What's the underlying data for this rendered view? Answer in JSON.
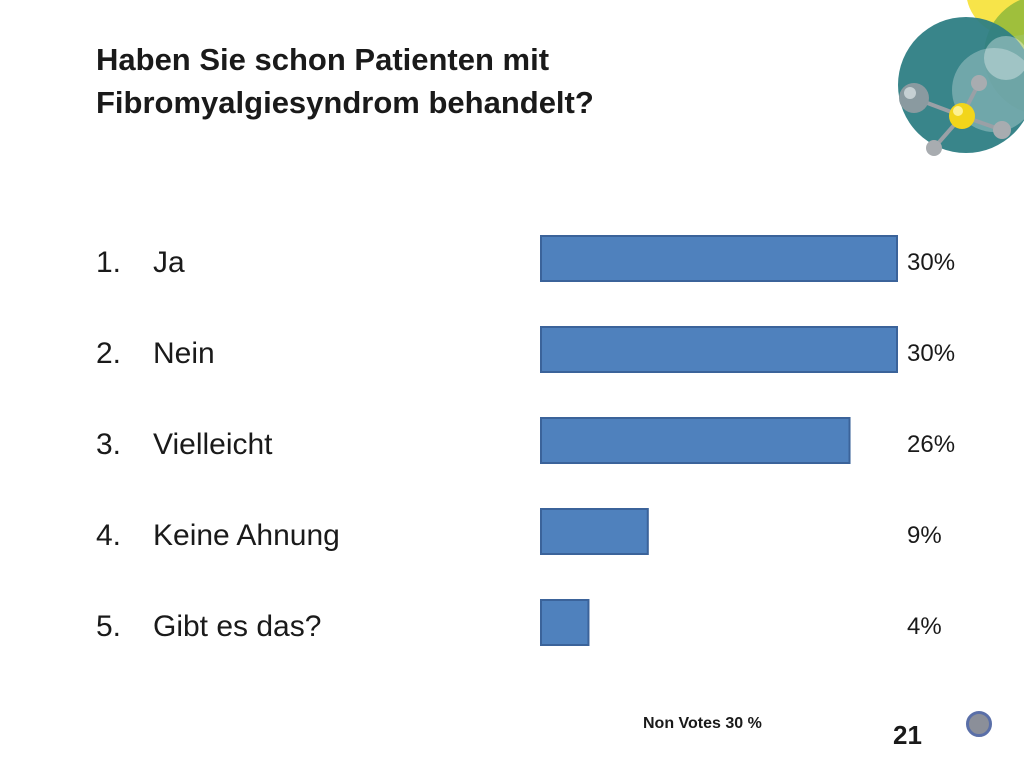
{
  "title": {
    "line1": "Haben Sie schon Patienten mit",
    "line2": "Fibromyalgiesyndrom behandelt?"
  },
  "chart_data": {
    "type": "bar",
    "orientation": "horizontal",
    "categories": [
      "1.",
      "2.",
      "3.",
      "4.",
      "5."
    ],
    "labels": [
      "Ja",
      "Nein",
      "Vielleicht",
      "Keine Ahnung",
      "Gibt es das?"
    ],
    "values": [
      30,
      30,
      26,
      9,
      4
    ],
    "value_labels": [
      "30%",
      "30%",
      "26%",
      "9%",
      "4%"
    ],
    "unit": "%",
    "xlim": [
      0,
      30
    ],
    "grid": false,
    "legend": "none",
    "bar_color": "#4f81bd",
    "bar_border_color": "#3b639a"
  },
  "footer": {
    "non_votes": "Non Votes 30 %",
    "page_number": "21"
  },
  "logo": {
    "icon": "molecule-logo-icon"
  }
}
